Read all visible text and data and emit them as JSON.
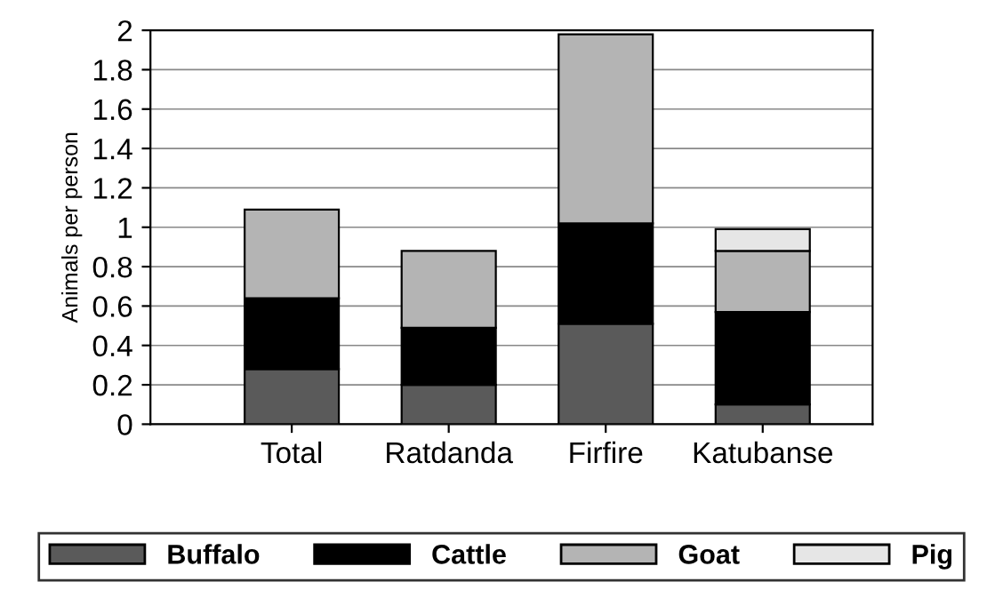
{
  "chart_data": {
    "type": "bar",
    "stacked": true,
    "ylabel": "Animals per person",
    "categories": [
      "Total",
      "Ratdanda",
      "Firfire",
      "Katubanse"
    ],
    "series": [
      {
        "name": "Buffalo",
        "color": "#5a5a5a",
        "values": [
          0.28,
          0.2,
          0.51,
          0.1
        ]
      },
      {
        "name": "Cattle",
        "color": "#000000",
        "values": [
          0.36,
          0.29,
          0.51,
          0.47
        ]
      },
      {
        "name": "Goat",
        "color": "#b4b4b4",
        "values": [
          0.45,
          0.39,
          0.96,
          0.31
        ]
      },
      {
        "name": "Pig",
        "color": "#e6e6e6",
        "values": [
          null,
          null,
          null,
          0.11
        ]
      }
    ],
    "ylim": [
      0,
      2
    ],
    "yticks": [
      0,
      0.2,
      0.4,
      0.6,
      0.8,
      1,
      1.2,
      1.4,
      1.6,
      1.8,
      2
    ],
    "grid": "y",
    "legend": "bottom"
  }
}
